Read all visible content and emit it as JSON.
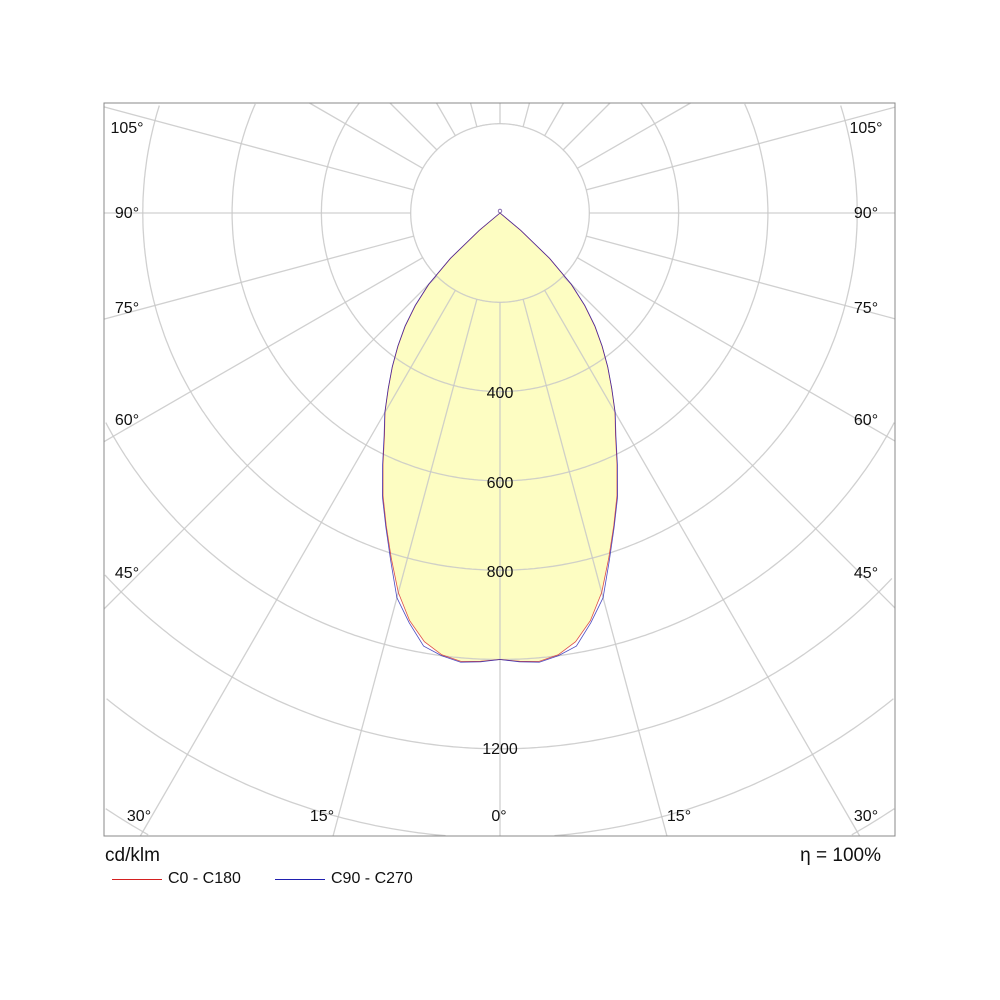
{
  "chart_data": {
    "type": "polar",
    "unit_label": "cd/klm",
    "efficiency_label": "η = 100%",
    "radial_ticks": [
      200,
      400,
      600,
      800,
      1000,
      1200,
      1400,
      1600,
      1800,
      2000
    ],
    "radial_tick_labels": [
      "400",
      "600",
      "800",
      "1200"
    ],
    "angle_step_deg": 15,
    "angle_labels": [
      "105°",
      "90°",
      "75°",
      "60°",
      "45°",
      "30°",
      "15°",
      "0°"
    ],
    "grid": true,
    "fill_color": "#fdfdc2",
    "gamma": [
      0,
      2.5,
      5,
      7.5,
      10,
      12.5,
      15,
      17.5,
      20,
      22.5,
      25,
      27.5,
      30,
      32.5,
      35,
      37.5,
      40,
      42.5,
      45,
      47.5,
      50,
      52.5,
      60,
      75,
      90
    ],
    "series": [
      {
        "name": "C0 - C180",
        "color": "#d42020",
        "values": [
          1000,
          1005,
          1008,
          998,
          975,
          935,
          880,
          810,
          745,
          685,
          620,
          560,
          515,
          465,
          420,
          375,
          330,
          280,
          225,
          150,
          60,
          0,
          0,
          0,
          0
        ]
      },
      {
        "name": "C90 - C270",
        "color": "#2020b0",
        "values": [
          1000,
          1006,
          1010,
          1000,
          985,
          940,
          892,
          815,
          748,
          688,
          622,
          562,
          516,
          466,
          421,
          376,
          331,
          281,
          226,
          151,
          61,
          0,
          0,
          0,
          0
        ]
      }
    ]
  }
}
